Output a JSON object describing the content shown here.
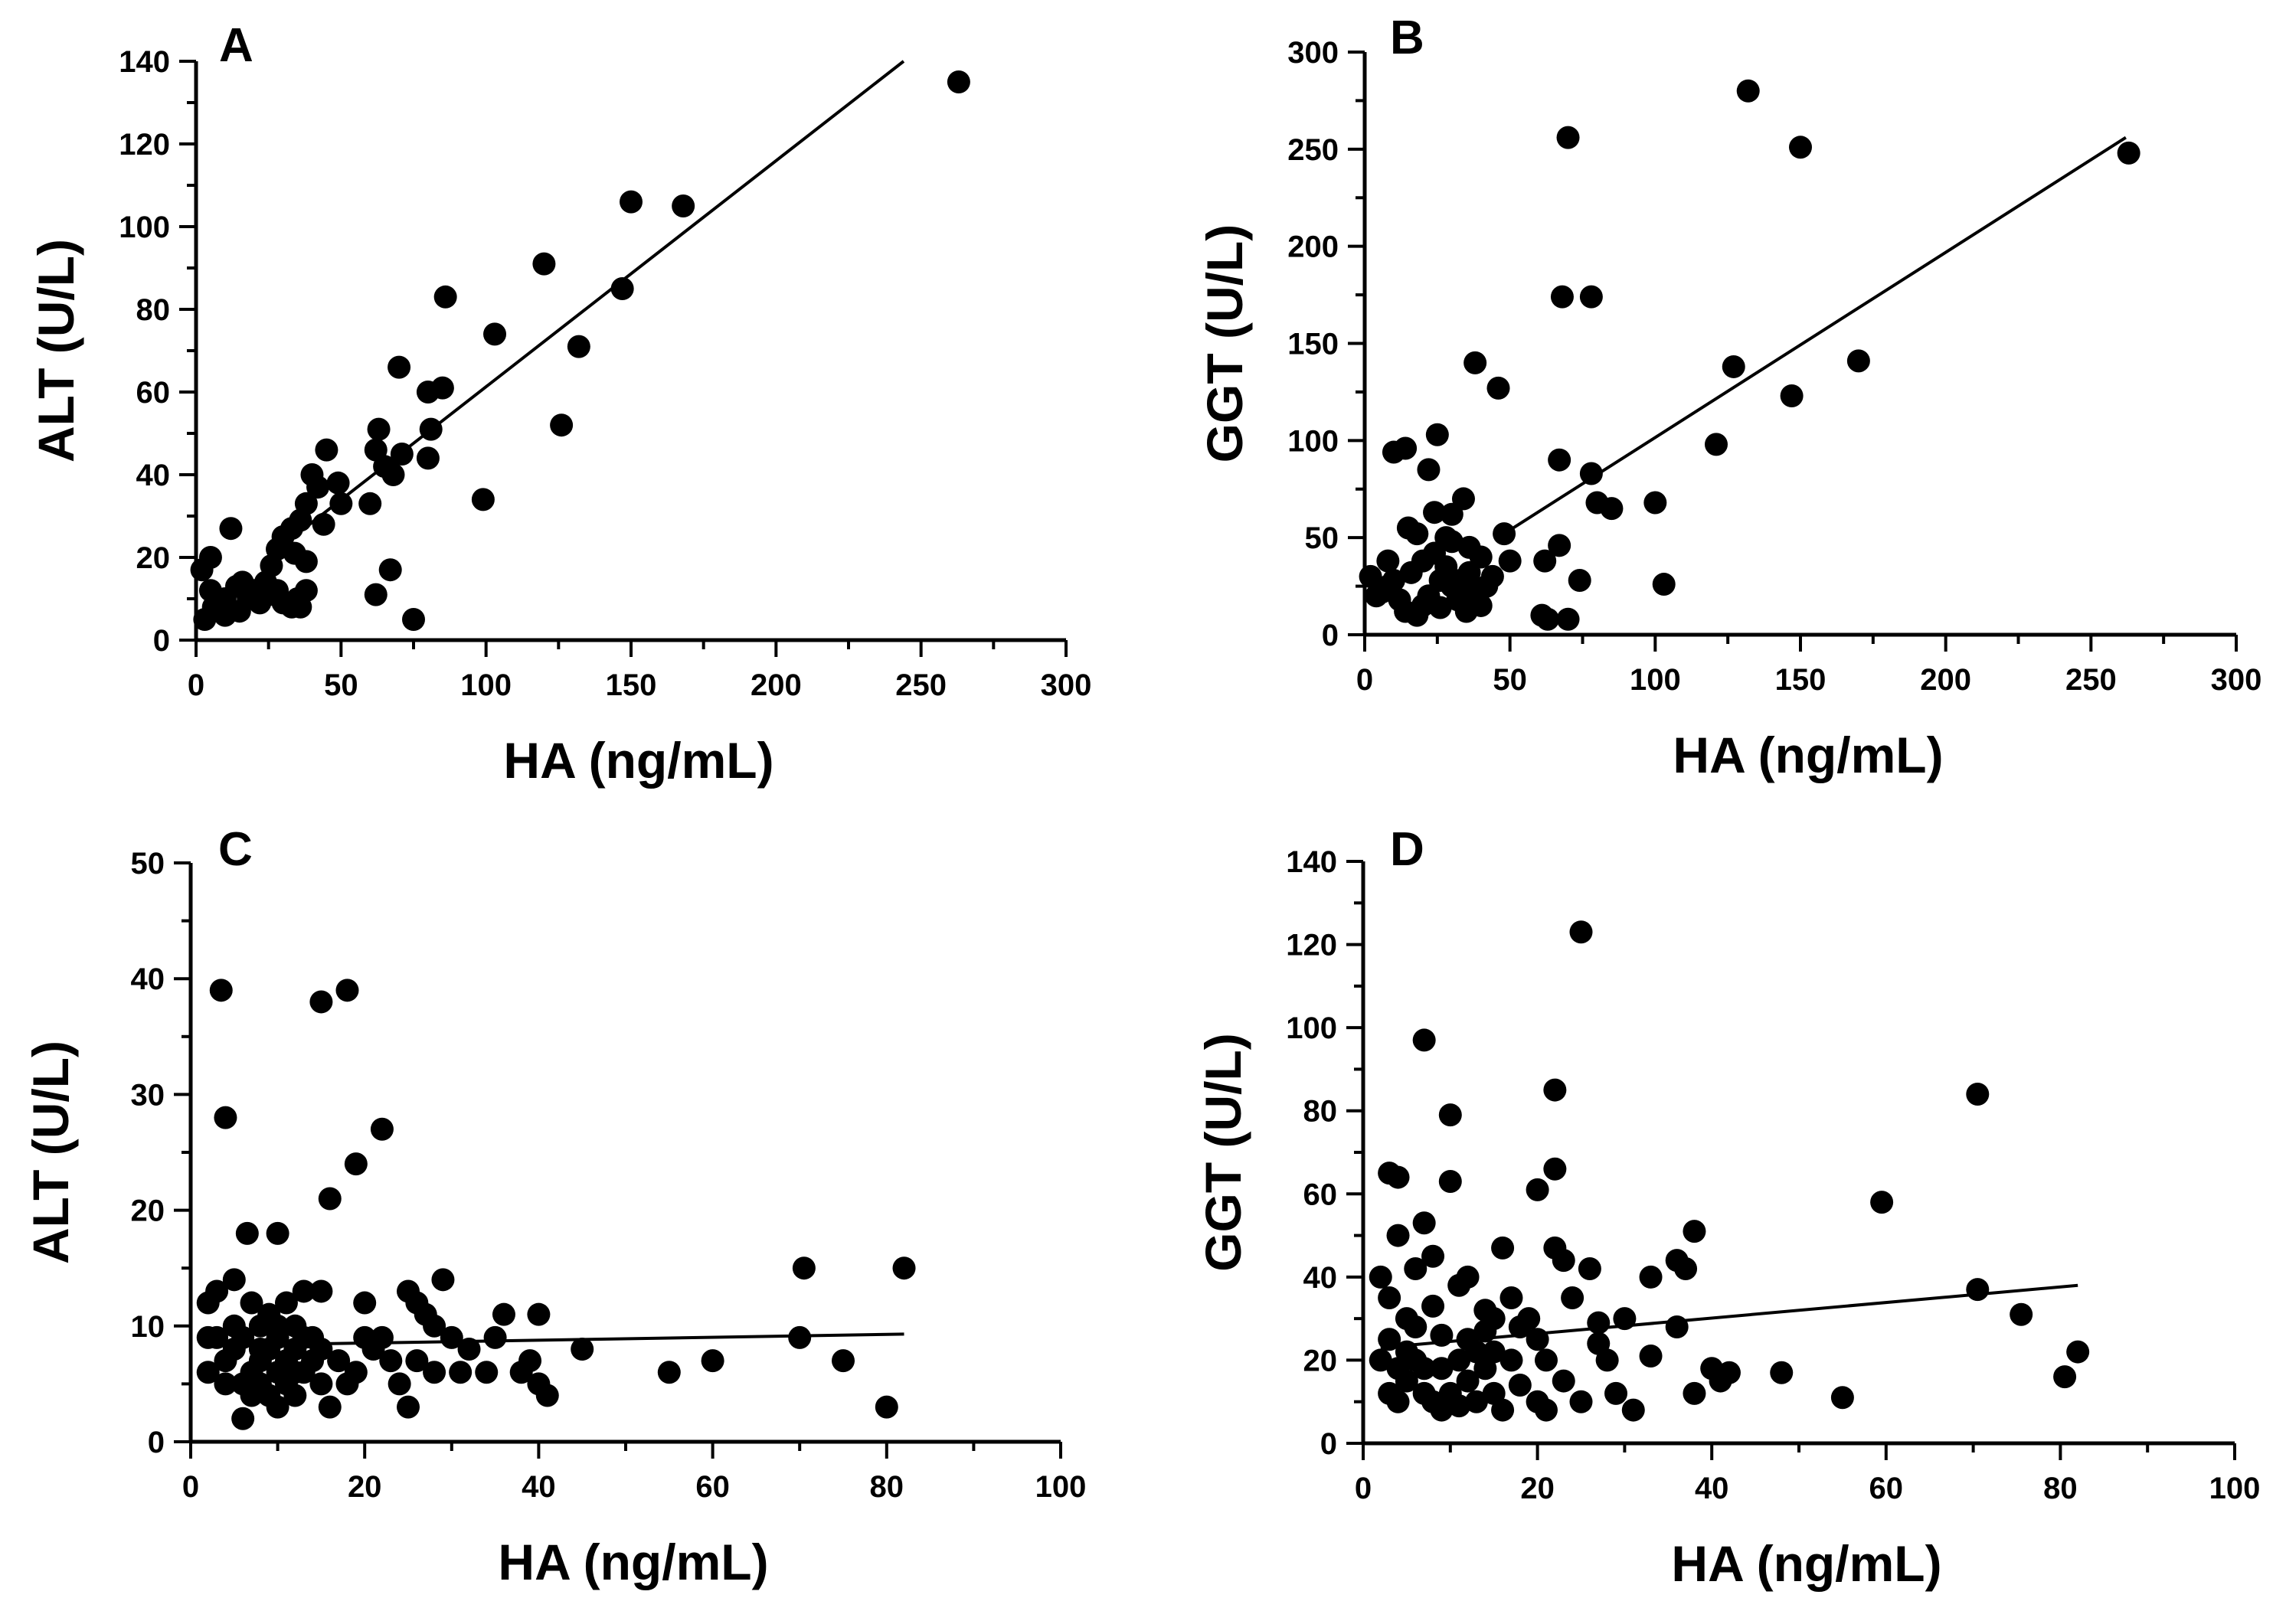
{
  "chart_data": [
    {
      "type": "scatter",
      "panel": "A",
      "xlabel": "HA (ng/mL)",
      "ylabel": "ALT (U/L)",
      "xlim": [
        0,
        300
      ],
      "ylim": [
        0,
        140
      ],
      "xticks": [
        "0",
        "50",
        "100",
        "150",
        "200",
        "250",
        "300"
      ],
      "yticks": [
        "0",
        "20",
        "40",
        "60",
        "80",
        "100",
        "120",
        "140"
      ],
      "points": [
        [
          263,
          135
        ],
        [
          150,
          106
        ],
        [
          168,
          105
        ],
        [
          120,
          91
        ],
        [
          147,
          85
        ],
        [
          86,
          83
        ],
        [
          103,
          74
        ],
        [
          132,
          71
        ],
        [
          70,
          66
        ],
        [
          80,
          60
        ],
        [
          85,
          61
        ],
        [
          63,
          51
        ],
        [
          81,
          51
        ],
        [
          126,
          52
        ],
        [
          62,
          46
        ],
        [
          65,
          42
        ],
        [
          68,
          40
        ],
        [
          71,
          45
        ],
        [
          80,
          44
        ],
        [
          45,
          46
        ],
        [
          40,
          40
        ],
        [
          42,
          37
        ],
        [
          38,
          33
        ],
        [
          49,
          38
        ],
        [
          50,
          33
        ],
        [
          60,
          33
        ],
        [
          36,
          29
        ],
        [
          33,
          27
        ],
        [
          30,
          25
        ],
        [
          28,
          22
        ],
        [
          26,
          18
        ],
        [
          34,
          21
        ],
        [
          38,
          19
        ],
        [
          44,
          28
        ],
        [
          99,
          34
        ],
        [
          5,
          20
        ],
        [
          12,
          27
        ],
        [
          2,
          17
        ],
        [
          5,
          12
        ],
        [
          10,
          10
        ],
        [
          14,
          13
        ],
        [
          6,
          8
        ],
        [
          3,
          5
        ],
        [
          10,
          6
        ],
        [
          15,
          7
        ],
        [
          18,
          10
        ],
        [
          20,
          12
        ],
        [
          22,
          9
        ],
        [
          25,
          11
        ],
        [
          28,
          12
        ],
        [
          30,
          9
        ],
        [
          33,
          8
        ],
        [
          35,
          10
        ],
        [
          36,
          8
        ],
        [
          38,
          12
        ],
        [
          62,
          11
        ],
        [
          67,
          17
        ],
        [
          75,
          5
        ],
        [
          16,
          14
        ],
        [
          24,
          14
        ]
      ],
      "fit": {
        "x": [
          30,
          244
        ],
        "y": [
          23,
          140
        ]
      }
    },
    {
      "type": "scatter",
      "panel": "B",
      "xlabel": "HA (ng/mL)",
      "ylabel": "GGT (U/L)",
      "xlim": [
        0,
        300
      ],
      "ylim": [
        0,
        300
      ],
      "xticks": [
        "0",
        "50",
        "100",
        "150",
        "200",
        "250",
        "300"
      ],
      "yticks": [
        "0",
        "50",
        "100",
        "150",
        "200",
        "250",
        "300"
      ],
      "points": [
        [
          132,
          280
        ],
        [
          70,
          256
        ],
        [
          150,
          251
        ],
        [
          263,
          248
        ],
        [
          68,
          174
        ],
        [
          78,
          174
        ],
        [
          170,
          141
        ],
        [
          127,
          138
        ],
        [
          38,
          140
        ],
        [
          46,
          127
        ],
        [
          147,
          123
        ],
        [
          121,
          98
        ],
        [
          10,
          94
        ],
        [
          14,
          96
        ],
        [
          25,
          103
        ],
        [
          22,
          85
        ],
        [
          67,
          90
        ],
        [
          78,
          83
        ],
        [
          80,
          68
        ],
        [
          85,
          65
        ],
        [
          100,
          68
        ],
        [
          103,
          26
        ],
        [
          34,
          70
        ],
        [
          30,
          62
        ],
        [
          24,
          63
        ],
        [
          28,
          50
        ],
        [
          36,
          45
        ],
        [
          40,
          40
        ],
        [
          48,
          52
        ],
        [
          67,
          46
        ],
        [
          62,
          38
        ],
        [
          74,
          28
        ],
        [
          50,
          38
        ],
        [
          8,
          38
        ],
        [
          15,
          55
        ],
        [
          18,
          52
        ],
        [
          2,
          30
        ],
        [
          4,
          20
        ],
        [
          8,
          25
        ],
        [
          12,
          18
        ],
        [
          14,
          12
        ],
        [
          18,
          10
        ],
        [
          20,
          15
        ],
        [
          22,
          20
        ],
        [
          26,
          28
        ],
        [
          28,
          35
        ],
        [
          30,
          25
        ],
        [
          32,
          18
        ],
        [
          35,
          12
        ],
        [
          38,
          22
        ],
        [
          40,
          15
        ],
        [
          42,
          25
        ],
        [
          44,
          30
        ],
        [
          24,
          42
        ],
        [
          30,
          48
        ],
        [
          61,
          10
        ],
        [
          63,
          8
        ],
        [
          70,
          8
        ],
        [
          16,
          32
        ],
        [
          20,
          38
        ],
        [
          33,
          28
        ],
        [
          36,
          32
        ],
        [
          26,
          14
        ],
        [
          10,
          28
        ],
        [
          6,
          22
        ]
      ],
      "fit": {
        "x": [
          48,
          262
        ],
        "y": [
          52,
          256
        ]
      }
    },
    {
      "type": "scatter",
      "panel": "C",
      "xlabel": "HA (ng/mL)",
      "ylabel": "ALT (U/L)",
      "xlim": [
        0,
        100
      ],
      "ylim": [
        0,
        50
      ],
      "xticks": [
        "0",
        "20",
        "40",
        "60",
        "80",
        "100"
      ],
      "yticks": [
        "0",
        "10",
        "20",
        "30",
        "40",
        "50"
      ],
      "points": [
        [
          3.5,
          39
        ],
        [
          15,
          38
        ],
        [
          18,
          39
        ],
        [
          4,
          28
        ],
        [
          22,
          27
        ],
        [
          19,
          24
        ],
        [
          16,
          21
        ],
        [
          6.5,
          18
        ],
        [
          10,
          18
        ],
        [
          29,
          14
        ],
        [
          36,
          11
        ],
        [
          40,
          11
        ],
        [
          70.5,
          15
        ],
        [
          82,
          15
        ],
        [
          2,
          12
        ],
        [
          3,
          13
        ],
        [
          5,
          14
        ],
        [
          7,
          12
        ],
        [
          9,
          11
        ],
        [
          11,
          12
        ],
        [
          13,
          13
        ],
        [
          15,
          13
        ],
        [
          20,
          12
        ],
        [
          25,
          13
        ],
        [
          26,
          12
        ],
        [
          27,
          11
        ],
        [
          28,
          10
        ],
        [
          30,
          9
        ],
        [
          32,
          8
        ],
        [
          34,
          6
        ],
        [
          35,
          9
        ],
        [
          38,
          6
        ],
        [
          39,
          7
        ],
        [
          40,
          5
        ],
        [
          41,
          4
        ],
        [
          45,
          8
        ],
        [
          55,
          6
        ],
        [
          60,
          7
        ],
        [
          70,
          9
        ],
        [
          75,
          7
        ],
        [
          80,
          3
        ],
        [
          2,
          6
        ],
        [
          4,
          7
        ],
        [
          5,
          8
        ],
        [
          6,
          9
        ],
        [
          7,
          6
        ],
        [
          8,
          7
        ],
        [
          9,
          8
        ],
        [
          10,
          9
        ],
        [
          11,
          7
        ],
        [
          12,
          8
        ],
        [
          13,
          6
        ],
        [
          14,
          7
        ],
        [
          15,
          5
        ],
        [
          16,
          3
        ],
        [
          18,
          5
        ],
        [
          19,
          6
        ],
        [
          21,
          8
        ],
        [
          22,
          9
        ],
        [
          24,
          5
        ],
        [
          25,
          3
        ],
        [
          26,
          7
        ],
        [
          28,
          6
        ],
        [
          6,
          2
        ],
        [
          7,
          4
        ],
        [
          8,
          5
        ],
        [
          9,
          4
        ],
        [
          10,
          3
        ],
        [
          11,
          5
        ],
        [
          12,
          4
        ],
        [
          3,
          9
        ],
        [
          5,
          10
        ],
        [
          8,
          10
        ],
        [
          10,
          10
        ],
        [
          12,
          10
        ],
        [
          14,
          9
        ],
        [
          2,
          9
        ],
        [
          4,
          5
        ],
        [
          6,
          5
        ],
        [
          8,
          8
        ],
        [
          10,
          6
        ],
        [
          12,
          6
        ],
        [
          13,
          9
        ],
        [
          15,
          8
        ],
        [
          17,
          7
        ],
        [
          20,
          9
        ],
        [
          23,
          7
        ],
        [
          31,
          6
        ]
      ],
      "fit": {
        "x": [
          2,
          82
        ],
        "y": [
          8.3,
          9.3
        ]
      }
    },
    {
      "type": "scatter",
      "panel": "D",
      "xlabel": "HA (ng/mL)",
      "ylabel": "GGT (U/L)",
      "xlim": [
        0,
        100
      ],
      "ylim": [
        0,
        140
      ],
      "xticks": [
        "0",
        "20",
        "40",
        "60",
        "80",
        "100"
      ],
      "yticks": [
        "0",
        "20",
        "40",
        "60",
        "80",
        "100",
        "120",
        "140"
      ],
      "points": [
        [
          25,
          123
        ],
        [
          7,
          97
        ],
        [
          22,
          85
        ],
        [
          70.5,
          84
        ],
        [
          10,
          79
        ],
        [
          22,
          66
        ],
        [
          3,
          65
        ],
        [
          4,
          64
        ],
        [
          10,
          63
        ],
        [
          20,
          61
        ],
        [
          59.5,
          58
        ],
        [
          7,
          53
        ],
        [
          38,
          51
        ],
        [
          4,
          50
        ],
        [
          16,
          47
        ],
        [
          22,
          47
        ],
        [
          23,
          44
        ],
        [
          26,
          42
        ],
        [
          33,
          40
        ],
        [
          36,
          44
        ],
        [
          37,
          42
        ],
        [
          70.5,
          37
        ],
        [
          75.5,
          31
        ],
        [
          27,
          29
        ],
        [
          30,
          30
        ],
        [
          36,
          28
        ],
        [
          40,
          18
        ],
        [
          41,
          15
        ],
        [
          42,
          17
        ],
        [
          48,
          17
        ],
        [
          55,
          11
        ],
        [
          80.5,
          16
        ],
        [
          82,
          22
        ],
        [
          2,
          40
        ],
        [
          3,
          35
        ],
        [
          5,
          30
        ],
        [
          6,
          28
        ],
        [
          8,
          33
        ],
        [
          9,
          26
        ],
        [
          11,
          38
        ],
        [
          12,
          25
        ],
        [
          14,
          27
        ],
        [
          15,
          22
        ],
        [
          17,
          20
        ],
        [
          18,
          28
        ],
        [
          19,
          30
        ],
        [
          20,
          25
        ],
        [
          21,
          20
        ],
        [
          23,
          15
        ],
        [
          24,
          35
        ],
        [
          25,
          10
        ],
        [
          27,
          24
        ],
        [
          28,
          20
        ],
        [
          29,
          12
        ],
        [
          31,
          8
        ],
        [
          33,
          21
        ],
        [
          38,
          12
        ],
        [
          2,
          20
        ],
        [
          3,
          12
        ],
        [
          4,
          10
        ],
        [
          5,
          15
        ],
        [
          6,
          20
        ],
        [
          7,
          12
        ],
        [
          8,
          10
        ],
        [
          9,
          18
        ],
        [
          10,
          12
        ],
        [
          11,
          20
        ],
        [
          12,
          15
        ],
        [
          13,
          10
        ],
        [
          14,
          18
        ],
        [
          15,
          12
        ],
        [
          16,
          8
        ],
        [
          18,
          14
        ],
        [
          20,
          10
        ],
        [
          21,
          8
        ],
        [
          3,
          25
        ],
        [
          5,
          22
        ],
        [
          7,
          18
        ],
        [
          9,
          8
        ],
        [
          11,
          9
        ],
        [
          13,
          22
        ],
        [
          15,
          30
        ],
        [
          17,
          35
        ],
        [
          6,
          42
        ],
        [
          8,
          45
        ],
        [
          12,
          40
        ],
        [
          14,
          32
        ],
        [
          4,
          18
        ]
      ],
      "fit": {
        "x": [
          2,
          82
        ],
        "y": [
          23,
          38
        ]
      }
    }
  ]
}
